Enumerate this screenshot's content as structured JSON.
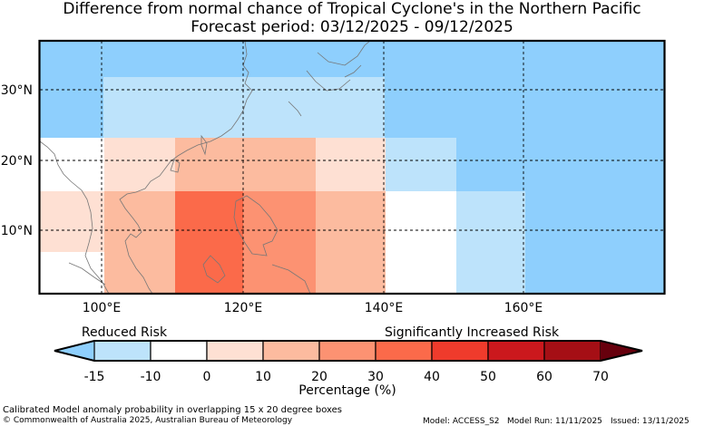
{
  "title_line1": "Difference from normal chance of Tropical Cyclone's in the Northern Pacific",
  "title_line2": "Forecast period: 03/12/2025 - 09/12/2025",
  "map": {
    "lon_labels": [
      "100°E",
      "120°E",
      "140°E",
      "160°E"
    ],
    "lat_labels": [
      "30°N",
      "20°N",
      "10°N"
    ]
  },
  "legend": {
    "reduced_label": "Reduced Risk",
    "increased_label": "Significantly Increased Risk",
    "ticks": [
      "-15",
      "-10",
      "0",
      "10",
      "20",
      "30",
      "40",
      "50",
      "60",
      "70"
    ],
    "xlabel": "Percentage (%)",
    "colors": [
      "#bde3fb",
      "#ffffff",
      "#fee0d3",
      "#fcbb9f",
      "#fc9272",
      "#fb6a4a",
      "#ef3b2c",
      "#cb181d",
      "#a50f15"
    ],
    "under_color": "#8ecffd",
    "over_color": "#67000d"
  },
  "footer": {
    "line1": "Calibrated Model anomaly probability in overlapping 15 x 20 degree boxes",
    "copyright": "© Commonwealth of Australia 2025, Australian Bureau of Meteorology",
    "model": "Model: ACCESS_S2",
    "model_run": "Model Run: 11/11/2025",
    "issued": "Issued: 13/11/2025"
  }
}
